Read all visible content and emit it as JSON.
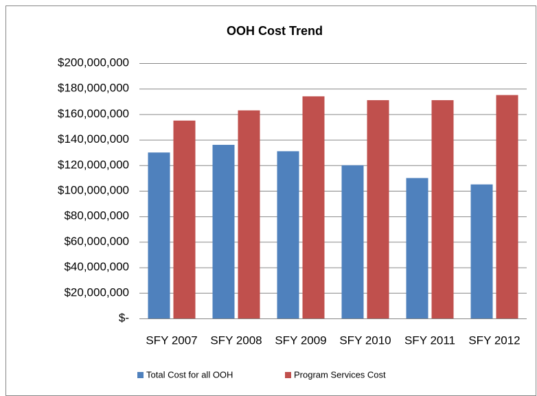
{
  "chart_data": {
    "type": "bar",
    "title": "OOH Cost Trend",
    "categories": [
      "SFY 2007",
      "SFY 2008",
      "SFY 2009",
      "SFY 2010",
      "SFY 2011",
      "SFY 2012"
    ],
    "series": [
      {
        "name": "Total Cost for all OOH",
        "color": "#4f81bd",
        "values": [
          130000000,
          136000000,
          131000000,
          120000000,
          110000000,
          105000000
        ]
      },
      {
        "name": "Program Services Cost",
        "color": "#c0504d",
        "values": [
          155000000,
          163000000,
          174000000,
          171000000,
          171000000,
          175000000
        ]
      }
    ],
    "ylim": [
      0,
      200000000
    ],
    "yticks": [
      {
        "value": 0,
        "label": "$-"
      },
      {
        "value": 20000000,
        "label": "$20,000,000"
      },
      {
        "value": 40000000,
        "label": "$40,000,000"
      },
      {
        "value": 60000000,
        "label": "$60,000,000"
      },
      {
        "value": 80000000,
        "label": "$80,000,000"
      },
      {
        "value": 100000000,
        "label": "$100,000,000"
      },
      {
        "value": 120000000,
        "label": "$120,000,000"
      },
      {
        "value": 140000000,
        "label": "$140,000,000"
      },
      {
        "value": 160000000,
        "label": "$160,000,000"
      },
      {
        "value": 180000000,
        "label": "$180,000,000"
      },
      {
        "value": 200000000,
        "label": "$200,000,000"
      }
    ],
    "grid": true,
    "legend": "bottom"
  }
}
